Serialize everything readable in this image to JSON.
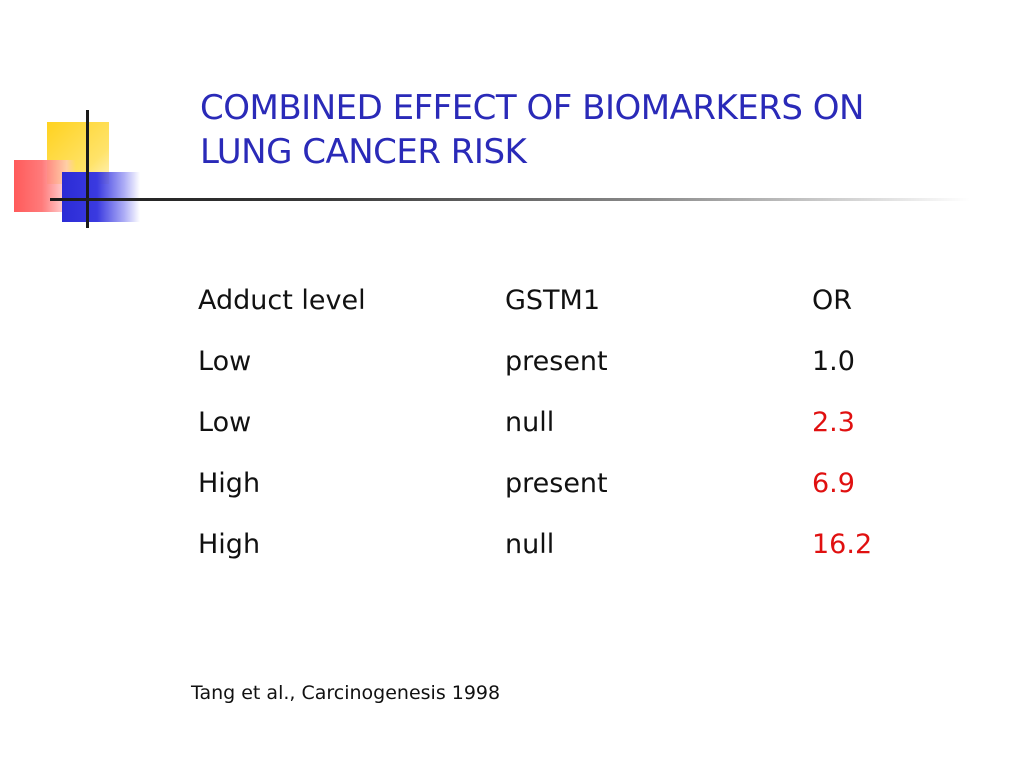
{
  "slide": {
    "title_line1": "COMBINED EFFECT OF BIOMARKERS ON",
    "title_line2": "LUNG CANCER RISK",
    "accent_color": "#2a2ab8",
    "highlight_color": "#e01010"
  },
  "table": {
    "headers": [
      "Adduct level",
      "GSTM1",
      "OR"
    ],
    "rows": [
      [
        "Low",
        "present",
        "1.0"
      ],
      [
        "Low",
        "null",
        "2.3"
      ],
      [
        "High",
        "present",
        "6.9"
      ],
      [
        "High",
        "null",
        "16.2"
      ]
    ]
  },
  "citation": "Tang et al., Carcinogenesis 1998"
}
